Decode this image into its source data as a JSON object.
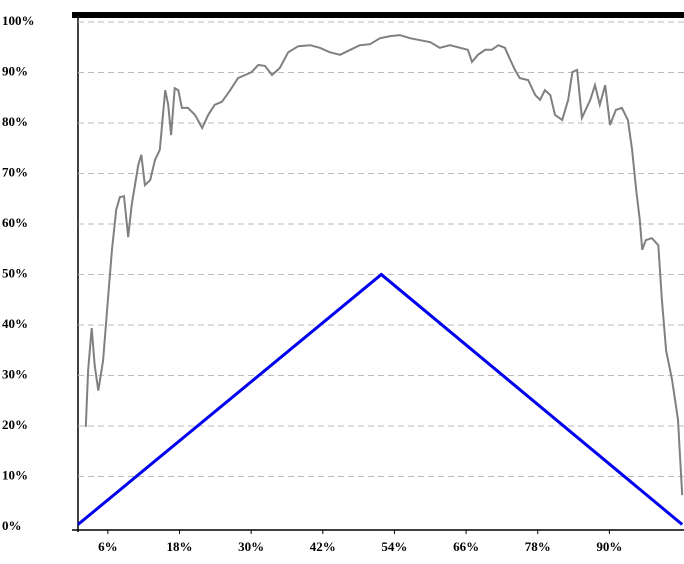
{
  "chart_data": {
    "type": "line",
    "xlim": [
      1,
      102.5
    ],
    "ylim": [
      0,
      100
    ],
    "xticks": [
      {
        "value": 6,
        "label": "6%"
      },
      {
        "value": 18,
        "label": "18%"
      },
      {
        "value": 30,
        "label": "30%"
      },
      {
        "value": 42,
        "label": "42%"
      },
      {
        "value": 54,
        "label": "54%"
      },
      {
        "value": 66,
        "label": "66%"
      },
      {
        "value": 78,
        "label": "78%"
      },
      {
        "value": 90,
        "label": "90%"
      }
    ],
    "yticks": [
      {
        "value": 0,
        "label": "0%"
      },
      {
        "value": 10,
        "label": "10%"
      },
      {
        "value": 20,
        "label": "20%"
      },
      {
        "value": 30,
        "label": "30%"
      },
      {
        "value": 40,
        "label": "40%"
      },
      {
        "value": 50,
        "label": "50%"
      },
      {
        "value": 60,
        "label": "60%"
      },
      {
        "value": 70,
        "label": "70%"
      },
      {
        "value": 80,
        "label": "80%"
      },
      {
        "value": 90,
        "label": "90%"
      },
      {
        "value": 100,
        "label": "100%"
      }
    ],
    "grid": true,
    "series": [
      {
        "color": "#808080",
        "x": [
          2.3,
          2.7,
          3.3,
          3.8,
          4.4,
          5.2,
          6,
          6.7,
          7.4,
          8,
          8.7,
          9.4,
          10,
          11.1,
          11.6,
          12.2,
          13.1,
          13.9,
          14.7,
          15.6,
          16.1,
          16.6,
          17.2,
          17.8,
          18.4,
          19.4,
          20.6,
          21.8,
          22.8,
          23.9,
          25.1,
          26.5,
          27.8,
          29,
          30.1,
          31.2,
          32.3,
          33.5,
          34.8,
          36.2,
          37.9,
          39.9,
          41.5,
          43.2,
          44.9,
          46.6,
          48.2,
          49.9,
          51.6,
          53.3,
          54.9,
          56.6,
          58.3,
          60,
          61.6,
          63.3,
          65,
          66.3,
          67,
          68,
          69.2,
          70.3,
          71.4,
          72.5,
          73.4,
          74.2,
          75,
          76.4,
          77.6,
          78.4,
          79.2,
          80.1,
          80.9,
          82.1,
          83.1,
          83.8,
          84.6,
          85.4,
          86.8,
          87.6,
          88.4,
          89.3,
          90.1,
          91.1,
          92.1,
          93.1,
          93.8,
          94.5,
          95.1,
          95.5,
          96.1,
          97.1,
          98.2,
          98.8,
          99.5,
          100.5,
          101.5,
          102.2
        ],
        "values": [
          19.8,
          31,
          39.4,
          32,
          27,
          33,
          45,
          55,
          62.8,
          65.3,
          65.5,
          57.4,
          63.8,
          71.7,
          73.7,
          67.7,
          68.7,
          72.7,
          74.7,
          86.5,
          83.6,
          77.6,
          86.9,
          86.5,
          83,
          83,
          81.6,
          79,
          81.6,
          83.6,
          84.2,
          86.5,
          88.9,
          89.5,
          90.1,
          91.5,
          91.3,
          89.5,
          90.9,
          94,
          95.2,
          95.4,
          94.9,
          94,
          93.5,
          94.5,
          95.4,
          95.6,
          96.8,
          97.2,
          97.4,
          96.8,
          96.4,
          96,
          94.9,
          95.4,
          94.9,
          94.5,
          92.1,
          93.5,
          94.5,
          94.5,
          95.4,
          94.9,
          92.5,
          90.5,
          88.9,
          88.5,
          85.5,
          84.6,
          86.5,
          85.5,
          81.6,
          80.6,
          84.6,
          90.1,
          90.5,
          81,
          84.6,
          87.5,
          83.6,
          87.5,
          79.6,
          82.6,
          83,
          80.6,
          74.7,
          66.7,
          60.8,
          54.9,
          56.8,
          57.2,
          55.8,
          45,
          35,
          29.1,
          21.2,
          6.3
        ]
      },
      {
        "color": "#0000ee",
        "x": [
          1,
          51.8,
          102.2
        ],
        "values": [
          0.5,
          50,
          0.5
        ]
      }
    ]
  }
}
